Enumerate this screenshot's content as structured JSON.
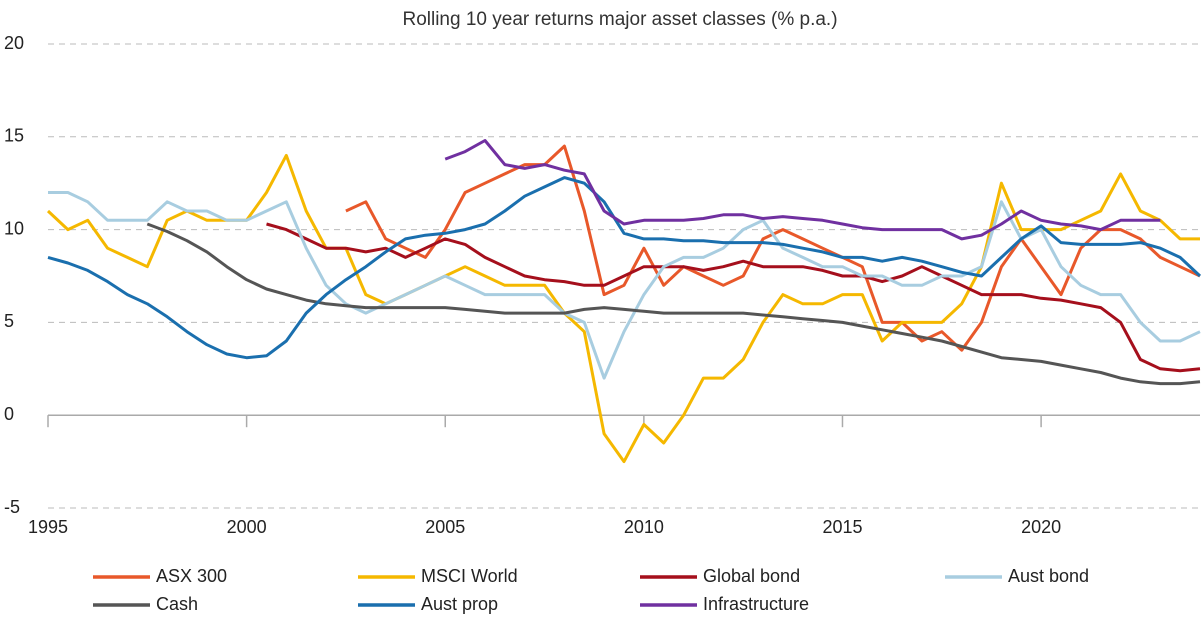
{
  "chart_data": {
    "type": "line",
    "title": "Rolling 10 year returns major asset classes  (% p.a.)",
    "x": [
      1995,
      1995.5,
      1996,
      1996.5,
      1997,
      1997.5,
      1998,
      1998.5,
      1999,
      1999.5,
      2000,
      2000.5,
      2001,
      2001.5,
      2002,
      2002.5,
      2003,
      2003.5,
      2004,
      2004.5,
      2005,
      2005.5,
      2006,
      2006.5,
      2007,
      2007.5,
      2008,
      2008.5,
      2009,
      2009.5,
      2010,
      2010.5,
      2011,
      2011.5,
      2012,
      2012.5,
      2013,
      2013.5,
      2014,
      2014.5,
      2015,
      2015.5,
      2016,
      2016.5,
      2017,
      2017.5,
      2018,
      2018.5,
      2019,
      2019.5,
      2020,
      2020.5,
      2021,
      2021.5,
      2022,
      2022.5,
      2023,
      2023.5,
      2024
    ],
    "xlim": [
      1995,
      2024
    ],
    "xticks": [
      1995,
      2000,
      2005,
      2010,
      2015,
      2020
    ],
    "ylim": [
      -5,
      20
    ],
    "yticks": [
      -5,
      0,
      5,
      10,
      15,
      20
    ],
    "grid": true,
    "series": [
      {
        "name": "ASX 300",
        "color": "#e8582a",
        "values": [
          null,
          null,
          null,
          null,
          null,
          null,
          null,
          null,
          null,
          null,
          null,
          null,
          null,
          null,
          null,
          11,
          11.5,
          9.5,
          9,
          8.5,
          10,
          12,
          12.5,
          13,
          13.5,
          13.5,
          14.5,
          11,
          6.5,
          7,
          9,
          7,
          8,
          7.5,
          7,
          7.5,
          9.5,
          10,
          9.5,
          9,
          8.5,
          8,
          5,
          5,
          4,
          4.5,
          3.5,
          5,
          8,
          9.5,
          8,
          6.5,
          9,
          10,
          10,
          9.5,
          8.5,
          8,
          7.5
        ]
      },
      {
        "name": "MSCI World",
        "color": "#f5b800",
        "values": [
          11,
          10,
          10.5,
          9,
          8.5,
          8,
          10.5,
          11,
          10.5,
          10.5,
          10.5,
          12,
          14,
          11,
          9,
          9,
          6.5,
          6,
          6.5,
          7,
          7.5,
          8,
          7.5,
          7,
          7,
          7,
          5.5,
          4.5,
          -1,
          -2.5,
          -0.5,
          -1.5,
          0,
          2,
          2,
          3,
          5,
          6.5,
          6,
          6,
          6.5,
          6.5,
          4,
          5,
          5,
          5,
          6,
          8,
          12.5,
          10,
          10,
          10,
          10.5,
          11,
          13,
          11,
          10.5,
          9.5,
          9.5
        ]
      },
      {
        "name": "Global bond",
        "color": "#a50f1c",
        "values": [
          null,
          null,
          null,
          null,
          null,
          null,
          null,
          null,
          null,
          null,
          null,
          10.3,
          10,
          9.5,
          9,
          9,
          8.8,
          9,
          8.5,
          9,
          9.5,
          9.2,
          8.5,
          8,
          7.5,
          7.3,
          7.2,
          7,
          7,
          7.5,
          8,
          8,
          8,
          7.8,
          8,
          8.3,
          8,
          8,
          8,
          7.8,
          7.5,
          7.5,
          7.2,
          7.5,
          8,
          7.5,
          7,
          6.5,
          6.5,
          6.5,
          6.3,
          6.2,
          6,
          5.8,
          5,
          3,
          2.5,
          2.4,
          2.5
        ]
      },
      {
        "name": "Aust bond",
        "color": "#a8cde0",
        "values": [
          12,
          12,
          11.5,
          10.5,
          10.5,
          10.5,
          11.5,
          11,
          11,
          10.5,
          10.5,
          11,
          11.5,
          9,
          7,
          6,
          5.5,
          6,
          6.5,
          7,
          7.5,
          7,
          6.5,
          6.5,
          6.5,
          6.5,
          5.5,
          5,
          2,
          4.5,
          6.5,
          8,
          8.5,
          8.5,
          9,
          10,
          10.5,
          9,
          8.5,
          8,
          8,
          7.5,
          7.5,
          7,
          7,
          7.5,
          7.5,
          8,
          11.5,
          9.5,
          10,
          8,
          7,
          6.5,
          6.5,
          5,
          4,
          4,
          4.5
        ]
      },
      {
        "name": "Cash",
        "color": "#555555",
        "values": [
          null,
          null,
          null,
          null,
          null,
          10.3,
          9.9,
          9.4,
          8.8,
          8,
          7.3,
          6.8,
          6.5,
          6.2,
          6,
          5.9,
          5.8,
          5.8,
          5.8,
          5.8,
          5.8,
          5.7,
          5.6,
          5.5,
          5.5,
          5.5,
          5.5,
          5.7,
          5.8,
          5.7,
          5.6,
          5.5,
          5.5,
          5.5,
          5.5,
          5.5,
          5.4,
          5.3,
          5.2,
          5.1,
          5,
          4.8,
          4.6,
          4.4,
          4.2,
          4,
          3.7,
          3.4,
          3.1,
          3,
          2.9,
          2.7,
          2.5,
          2.3,
          2,
          1.8,
          1.7,
          1.7,
          1.8
        ]
      },
      {
        "name": "Aust prop",
        "color": "#1a6fae",
        "values": [
          8.5,
          8.2,
          7.8,
          7.2,
          6.5,
          6,
          5.3,
          4.5,
          3.8,
          3.3,
          3.1,
          3.2,
          4,
          5.5,
          6.5,
          7.3,
          8,
          8.8,
          9.5,
          9.7,
          9.8,
          10,
          10.3,
          11,
          11.8,
          12.3,
          12.8,
          12.5,
          11.5,
          9.8,
          9.5,
          9.5,
          9.4,
          9.4,
          9.3,
          9.3,
          9.3,
          9.2,
          9,
          8.8,
          8.5,
          8.5,
          8.3,
          8.5,
          8.3,
          8,
          7.7,
          7.5,
          8.5,
          9.5,
          10.2,
          9.3,
          9.2,
          9.2,
          9.2,
          9.3,
          9,
          8.5,
          7.5
        ]
      },
      {
        "name": "Infrastructure",
        "color": "#7030a0",
        "values": [
          null,
          null,
          null,
          null,
          null,
          null,
          null,
          null,
          null,
          null,
          null,
          null,
          null,
          null,
          null,
          null,
          null,
          null,
          null,
          null,
          13.8,
          14.2,
          14.8,
          13.5,
          13.3,
          13.5,
          13.2,
          13,
          11,
          10.3,
          10.5,
          10.5,
          10.5,
          10.6,
          10.8,
          10.8,
          10.6,
          10.7,
          10.6,
          10.5,
          10.3,
          10.1,
          10,
          10,
          10,
          10,
          9.5,
          9.7,
          10.3,
          11,
          10.5,
          10.3,
          10.2,
          10,
          10.5,
          10.5,
          10.5,
          null,
          null
        ]
      }
    ]
  }
}
